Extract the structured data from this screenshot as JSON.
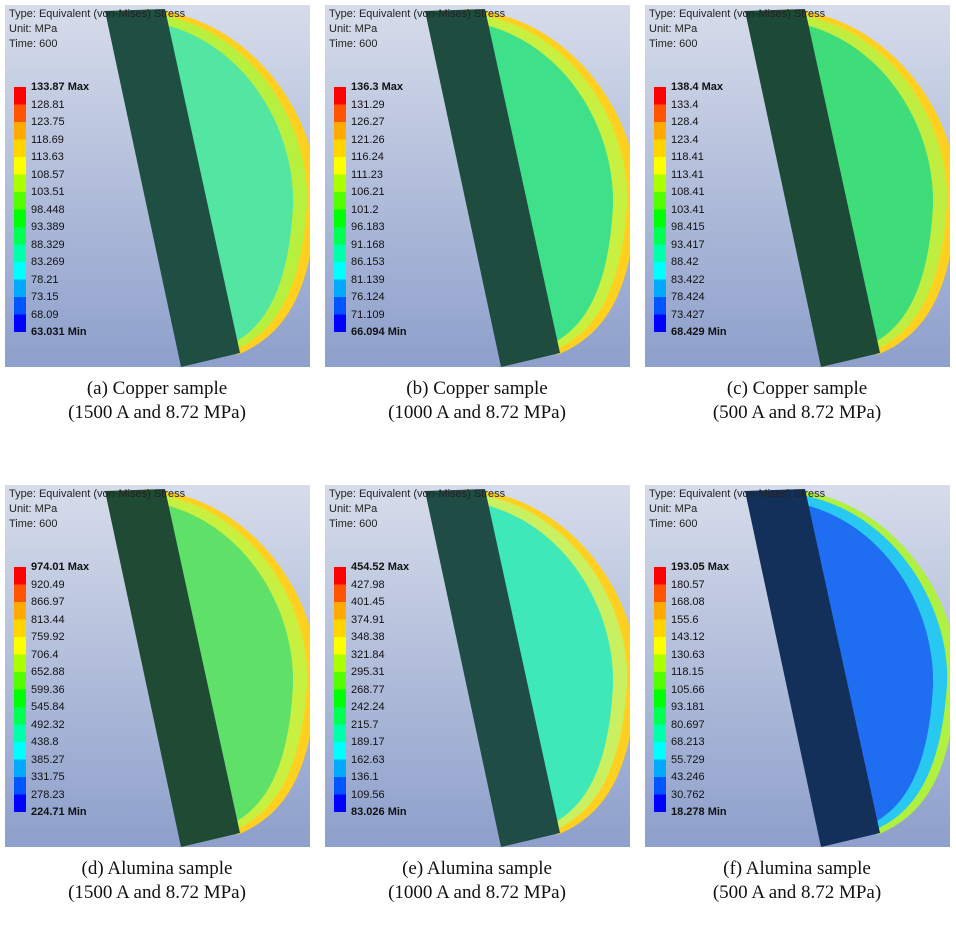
{
  "panels": [
    {
      "header": [
        "Type: Equivalent (von-Mises) Stress",
        "Unit: MPa",
        "Time: 600"
      ],
      "legend": [
        "133.87 Max",
        "128.81",
        "123.75",
        "118.69",
        "113.63",
        "108.57",
        "103.51",
        "98.448",
        "93.389",
        "88.329",
        "83.269",
        "78.21",
        "73.15",
        "68.09",
        "63.031 Min"
      ],
      "caption": [
        "(a) Copper sample",
        "(1500 A and 8.72 MPa)"
      ]
    },
    {
      "header": [
        "Type: Equivalent (von-Mises) Stress",
        "Unit: MPa",
        "Time: 600"
      ],
      "legend": [
        "136.3 Max",
        "131.29",
        "126.27",
        "121.26",
        "116.24",
        "111.23",
        "106.21",
        "101.2",
        "96.183",
        "91.168",
        "86.153",
        "81.139",
        "76.124",
        "71.109",
        "66.094 Min"
      ],
      "caption": [
        "(b) Copper sample",
        "(1000 A and 8.72 MPa)"
      ]
    },
    {
      "header": [
        "Type: Equivalent (von-Mises) Stress",
        "Unit: MPa",
        "Time: 600"
      ],
      "legend": [
        "138.4 Max",
        "133.4",
        "128.4",
        "123.4",
        "118.41",
        "113.41",
        "108.41",
        "103.41",
        "98.415",
        "93.417",
        "88.42",
        "83.422",
        "78.424",
        "73.427",
        "68.429 Min"
      ],
      "caption": [
        "(c) Copper sample",
        "(500 A and 8.72 MPa)"
      ]
    },
    {
      "header": [
        "Type: Equivalent (von-Mises) Stress",
        "Unit: MPa",
        "Time: 600"
      ],
      "legend": [
        "974.01 Max",
        "920.49",
        "866.97",
        "813.44",
        "759.92",
        "706.4",
        "652.88",
        "599.36",
        "545.84",
        "492.32",
        "438.8",
        "385.27",
        "331.75",
        "278.23",
        "224.71 Min"
      ],
      "caption": [
        "(d) Alumina sample",
        "(1500 A and 8.72 MPa)"
      ]
    },
    {
      "header": [
        "Type: Equivalent (von-Mises) Stress",
        "Unit: MPa",
        "Time: 600"
      ],
      "legend": [
        "454.52 Max",
        "427.98",
        "401.45",
        "374.91",
        "348.38",
        "321.84",
        "295.31",
        "268.77",
        "242.24",
        "215.7",
        "189.17",
        "162.63",
        "136.1",
        "109.56",
        "83.026 Min"
      ],
      "caption": [
        "(e) Alumina sample",
        "(1000 A and 8.72 MPa)"
      ]
    },
    {
      "header": [
        "Type: Equivalent (von-Mises) Stress",
        "Unit: MPa",
        "Time: 600"
      ],
      "legend": [
        "193.05 Max",
        "180.57",
        "168.08",
        "155.6",
        "143.12",
        "130.63",
        "118.15",
        "105.66",
        "93.181",
        "80.697",
        "68.213",
        "55.729",
        "43.246",
        "30.762",
        "18.278 Min"
      ],
      "caption": [
        "(f) Alumina sample",
        "(500 A and 8.72 MPa)"
      ]
    }
  ]
}
